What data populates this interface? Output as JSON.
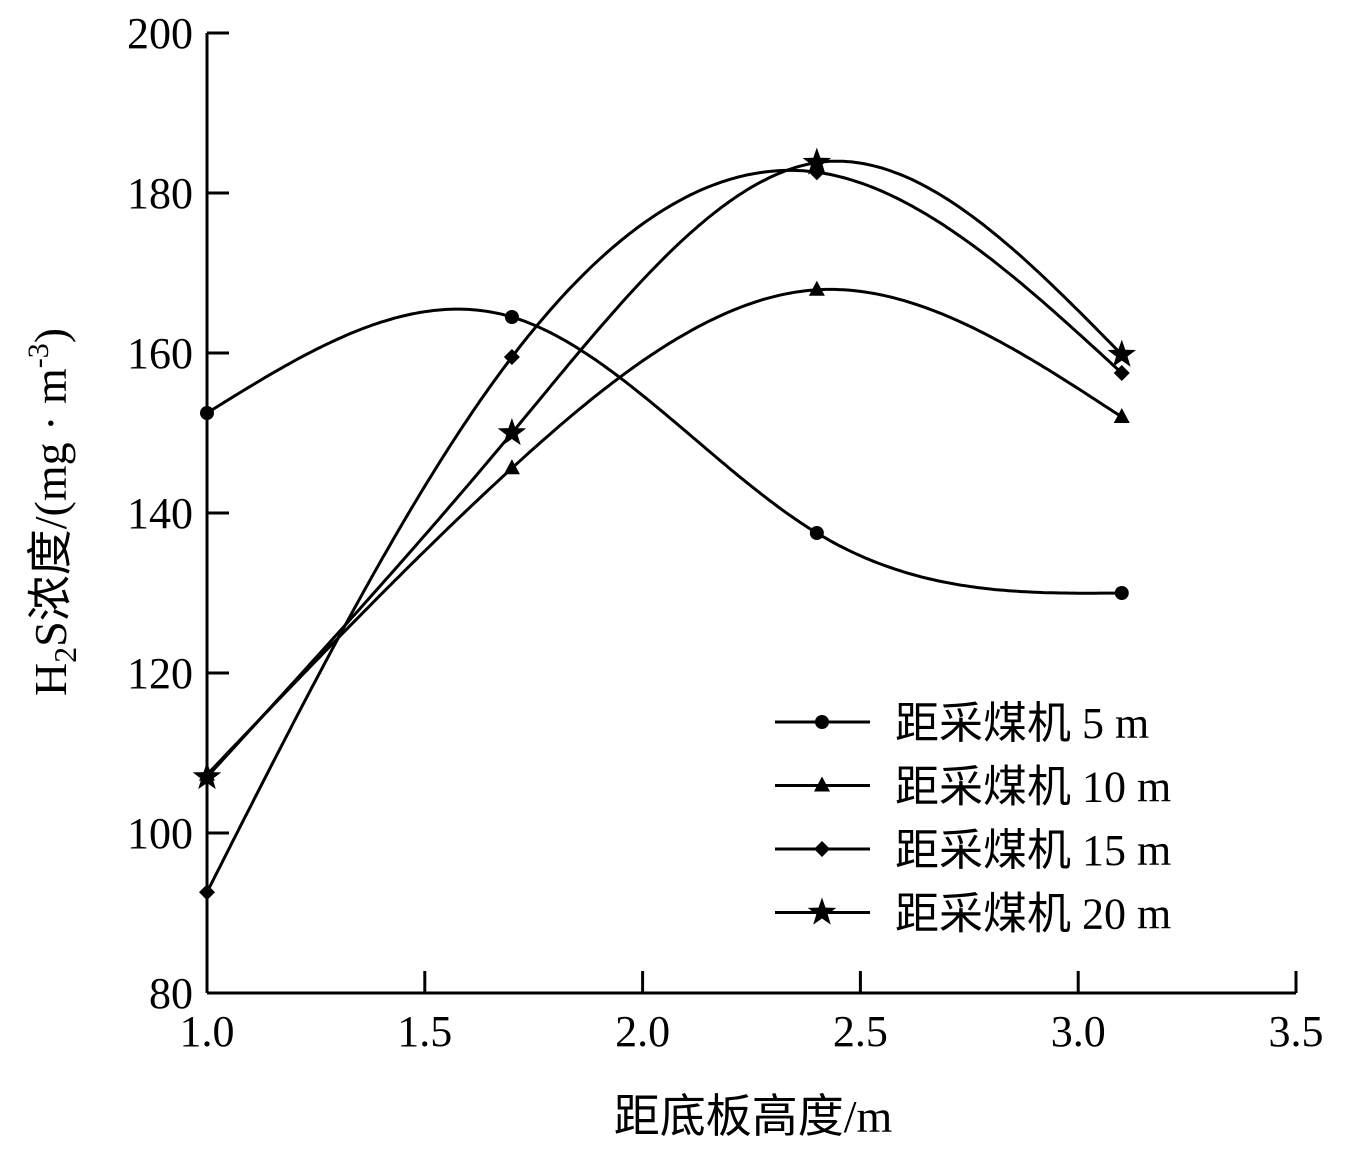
{
  "chart_data": {
    "type": "line",
    "title": "",
    "xlabel": "距底板高度/m",
    "ylabel": {
      "main": "H",
      "sub": "2",
      "rest": "S浓度/(mg · m",
      "sup": "-3",
      "close": ")"
    },
    "xlim": [
      1.0,
      3.5
    ],
    "ylim": [
      80,
      200
    ],
    "xticks": [
      "1.0",
      "1.5",
      "2.0",
      "2.5",
      "3.0",
      "3.5"
    ],
    "yticks": [
      "80",
      "100",
      "120",
      "140",
      "160",
      "180",
      "200"
    ],
    "grid": false,
    "legend_position": "bottom-right",
    "x": [
      1.0,
      1.7,
      2.4,
      3.1
    ],
    "series": [
      {
        "name": "距采煤机 5 m",
        "marker": "circle",
        "values": [
          152.5,
          164.5,
          137.5,
          130
        ]
      },
      {
        "name": "距采煤机 10 m",
        "marker": "triangle",
        "values": [
          107.3,
          145.6,
          167.9,
          152
        ]
      },
      {
        "name": "距采煤机 15 m",
        "marker": "diamond",
        "values": [
          92.6,
          159.5,
          182.6,
          157.5
        ]
      },
      {
        "name": "距采煤机 20 m",
        "marker": "star",
        "values": [
          107,
          150,
          183.8,
          159.8
        ]
      }
    ],
    "color": "#000000"
  }
}
